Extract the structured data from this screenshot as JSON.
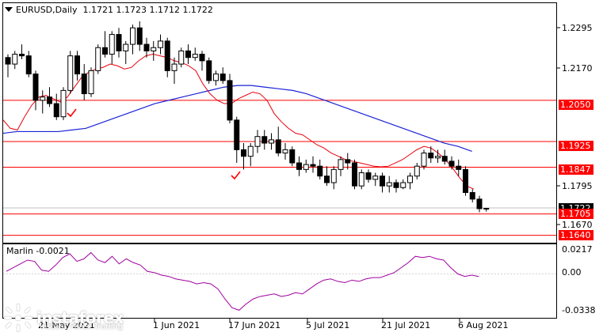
{
  "header": {
    "symbol": "EURUSD,Daily",
    "ohlc": "1.1721 1.1723 1.1712 1.1722"
  },
  "indicator": {
    "title": "Marlin -0.0021"
  },
  "price_axis": {
    "ticks": [
      "1.2295",
      "1.2170",
      "1.1795",
      "1.1670"
    ],
    "levels": [
      "1.2050",
      "1.1925",
      "1.1847",
      "1.1705",
      "1.1640"
    ],
    "current": "1.1722"
  },
  "indicator_axis": {
    "ticks": [
      "0.0217",
      "0.00",
      "-0.0338"
    ]
  },
  "time_axis": {
    "labels": [
      "21 May 2021",
      "1 Jun 2021",
      "17 Jun 2021",
      "5 Jul 2021",
      "21 Jul 2021",
      "6 Aug 2021"
    ]
  },
  "watermark": {
    "brand": "instaforex",
    "tagline": "Instant Forex Trading"
  },
  "colors": {
    "level": "#ff0000",
    "ma_fast": "#e8000b",
    "ma_slow": "#1a23d6",
    "oscillator": "#a000a0"
  },
  "chart_data": {
    "type": "candlestick",
    "ylim": [
      1.162,
      1.2345
    ],
    "levels": [
      1.205,
      1.1925,
      1.1847,
      1.1705,
      1.164
    ],
    "candles": [
      [
        1.218,
        1.219,
        1.212,
        1.216
      ],
      [
        1.216,
        1.22,
        1.2145,
        1.219
      ],
      [
        1.219,
        1.222,
        1.2175,
        1.2185
      ],
      [
        1.2185,
        1.22,
        1.212,
        1.213
      ],
      [
        1.213,
        1.214,
        1.202,
        1.205
      ],
      [
        1.205,
        1.208,
        1.201,
        1.206
      ],
      [
        1.206,
        1.209,
        1.203,
        1.204
      ],
      [
        1.204,
        1.207,
        1.199,
        1.2
      ],
      [
        1.2,
        1.209,
        1.199,
        1.208
      ],
      [
        1.208,
        1.22,
        1.207,
        1.2185
      ],
      [
        1.2185,
        1.22,
        1.211,
        1.213
      ],
      [
        1.213,
        1.216,
        1.205,
        1.207
      ],
      [
        1.207,
        1.215,
        1.206,
        1.214
      ],
      [
        1.214,
        1.222,
        1.213,
        1.221
      ],
      [
        1.221,
        1.226,
        1.218,
        1.219
      ],
      [
        1.219,
        1.226,
        1.216,
        1.225
      ],
      [
        1.225,
        1.227,
        1.218,
        1.22
      ],
      [
        1.22,
        1.223,
        1.216,
        1.222
      ],
      [
        1.222,
        1.228,
        1.219,
        1.227
      ],
      [
        1.227,
        1.229,
        1.22,
        1.222
      ],
      [
        1.222,
        1.224,
        1.218,
        1.22
      ],
      [
        1.22,
        1.223,
        1.217,
        1.221
      ],
      [
        1.221,
        1.225,
        1.219,
        1.223
      ],
      [
        1.223,
        1.224,
        1.212,
        1.214
      ],
      [
        1.214,
        1.218,
        1.21,
        1.216
      ],
      [
        1.216,
        1.221,
        1.215,
        1.22
      ],
      [
        1.22,
        1.222,
        1.216,
        1.218
      ],
      [
        1.218,
        1.221,
        1.217,
        1.219
      ],
      [
        1.219,
        1.22,
        1.214,
        1.217
      ],
      [
        1.217,
        1.218,
        1.21,
        1.211
      ],
      [
        1.211,
        1.214,
        1.2095,
        1.213
      ],
      [
        1.213,
        1.215,
        1.21,
        1.211
      ],
      [
        1.211,
        1.213,
        1.198,
        1.199
      ],
      [
        1.199,
        1.2,
        1.186,
        1.19
      ],
      [
        1.19,
        1.192,
        1.184,
        1.188
      ],
      [
        1.188,
        1.192,
        1.185,
        1.191
      ],
      [
        1.191,
        1.196,
        1.189,
        1.194
      ],
      [
        1.194,
        1.196,
        1.19,
        1.192
      ],
      [
        1.192,
        1.195,
        1.19,
        1.193
      ],
      [
        1.193,
        1.197,
        1.188,
        1.189
      ],
      [
        1.189,
        1.192,
        1.187,
        1.19
      ],
      [
        1.19,
        1.191,
        1.185,
        1.186
      ],
      [
        1.186,
        1.188,
        1.182,
        1.184
      ],
      [
        1.184,
        1.187,
        1.183,
        1.1855
      ],
      [
        1.1855,
        1.188,
        1.183,
        1.185
      ],
      [
        1.185,
        1.187,
        1.181,
        1.182
      ],
      [
        1.182,
        1.185,
        1.179,
        1.18
      ],
      [
        1.18,
        1.185,
        1.178,
        1.184
      ],
      [
        1.184,
        1.188,
        1.182,
        1.187
      ],
      [
        1.187,
        1.189,
        1.184,
        1.186
      ],
      [
        1.186,
        1.187,
        1.178,
        1.179
      ],
      [
        1.179,
        1.184,
        1.178,
        1.183
      ],
      [
        1.183,
        1.184,
        1.18,
        1.181
      ],
      [
        1.181,
        1.183,
        1.179,
        1.182
      ],
      [
        1.182,
        1.183,
        1.177,
        1.179
      ],
      [
        1.179,
        1.182,
        1.177,
        1.18
      ],
      [
        1.18,
        1.181,
        1.177,
        1.1785
      ],
      [
        1.1785,
        1.181,
        1.178,
        1.18
      ],
      [
        1.18,
        1.183,
        1.178,
        1.182
      ],
      [
        1.182,
        1.186,
        1.181,
        1.185
      ],
      [
        1.185,
        1.19,
        1.184,
        1.189
      ],
      [
        1.189,
        1.191,
        1.186,
        1.1875
      ],
      [
        1.1875,
        1.19,
        1.186,
        1.188
      ],
      [
        1.188,
        1.19,
        1.1855,
        1.1865
      ],
      [
        1.1865,
        1.188,
        1.184,
        1.185
      ],
      [
        1.185,
        1.187,
        1.182,
        1.184
      ],
      [
        1.184,
        1.185,
        1.176,
        1.177
      ],
      [
        1.177,
        1.178,
        1.174,
        1.175
      ],
      [
        1.175,
        1.176,
        1.171,
        1.1721
      ],
      [
        1.1721,
        1.1723,
        1.1712,
        1.1722
      ]
    ],
    "ma_fast": [
      1.199,
      1.1965,
      1.196,
      1.2,
      1.2035,
      1.206,
      1.2065,
      1.2055,
      1.2045,
      1.206,
      1.209,
      1.212,
      1.2135,
      1.2145,
      1.215,
      1.216,
      1.2155,
      1.2145,
      1.215,
      1.217,
      1.2185,
      1.219,
      1.2185,
      1.218,
      1.217,
      1.2165,
      1.2155,
      1.214,
      1.21,
      1.207,
      1.205,
      1.204,
      1.204,
      1.2055,
      1.2065,
      1.2075,
      1.207,
      1.205,
      1.201,
      1.1985,
      1.1965,
      1.195,
      1.1945,
      1.193,
      1.1915,
      1.1905,
      1.189,
      1.188,
      1.187,
      1.1865,
      1.186,
      1.1855,
      1.185,
      1.1848,
      1.185,
      1.186,
      1.187,
      1.1885,
      1.19,
      1.191,
      1.1905,
      1.189,
      1.187,
      1.1845,
      1.1815,
      1.179,
      1.178
    ],
    "ma_slow": [
      1.195,
      1.1955,
      1.1955,
      1.1955,
      1.1955,
      1.196,
      1.1965,
      1.198,
      1.1995,
      1.201,
      1.2025,
      1.204,
      1.205,
      1.206,
      1.207,
      1.208,
      1.209,
      1.2095,
      1.2095,
      1.209,
      1.2085,
      1.208,
      1.207,
      1.2055,
      1.204,
      1.2025,
      1.201,
      1.1995,
      1.198,
      1.1965,
      1.195,
      1.1935,
      1.192,
      1.191,
      1.1895
    ],
    "oscillator": {
      "ylim": [
        -0.0338,
        0.0217
      ],
      "values": [
        0.002,
        0.005,
        0.008,
        0.011,
        0.01,
        0.003,
        0.002,
        0.007,
        0.013,
        0.016,
        0.01,
        0.012,
        0.017,
        0.011,
        0.009,
        0.014,
        0.008,
        0.012,
        0.009,
        0.007,
        0.002,
        0.001,
        -0.001,
        -0.002,
        -0.004,
        -0.005,
        -0.006,
        -0.008,
        -0.007,
        -0.008,
        -0.012,
        -0.02,
        -0.027,
        -0.029,
        -0.024,
        -0.02,
        -0.018,
        -0.017,
        -0.016,
        -0.018,
        -0.017,
        -0.015,
        -0.016,
        -0.012,
        -0.008,
        -0.005,
        -0.004,
        -0.006,
        -0.007,
        -0.005,
        -0.006,
        -0.004,
        -0.003,
        -0.003,
        -0.001,
        0.001,
        0.005,
        0.009,
        0.014,
        0.013,
        0.014,
        0.012,
        0.011,
        0.005,
        0.0,
        -0.002,
        -0.001,
        -0.0021
      ]
    }
  }
}
